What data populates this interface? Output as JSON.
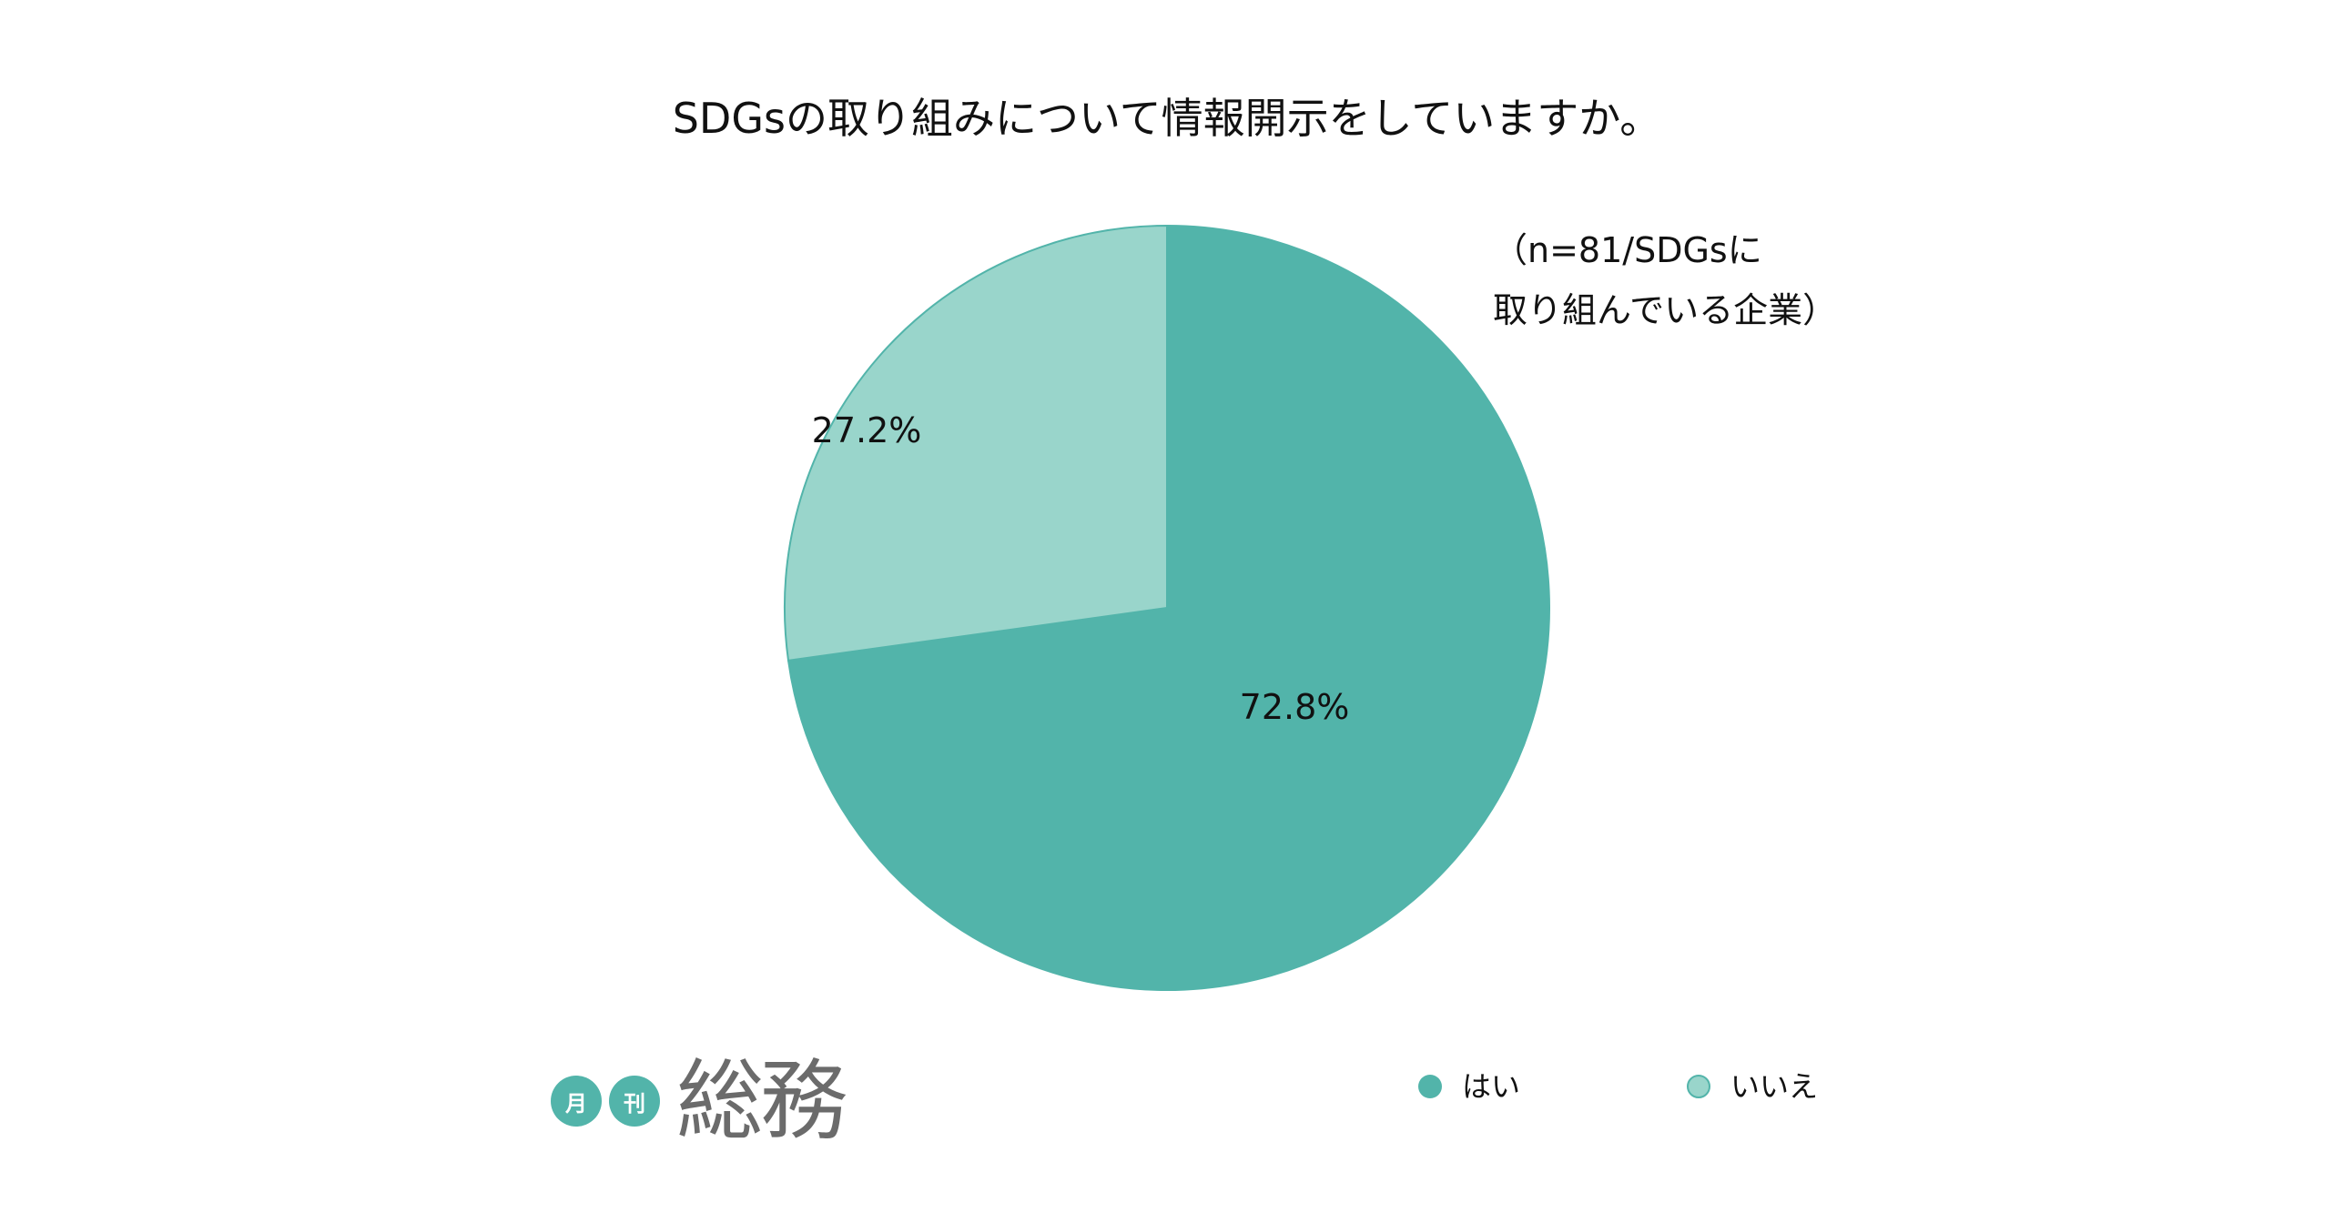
{
  "title": "SDGsの取り組みについて情報開示をしていますか。",
  "note": {
    "line1": "（n=81/SDGsに",
    "line2": "取り組んでいる企業）"
  },
  "colors": {
    "yes": "#52b4aa",
    "no": "#99d5cb",
    "logo_badge": "#52b4aa"
  },
  "chart_data": {
    "type": "pie",
    "title": "SDGsの取り組みについて情報開示をしていますか。",
    "slices": [
      {
        "label": "はい",
        "value": 72.8,
        "display": "72.8%"
      },
      {
        "label": "いいえ",
        "value": 27.2,
        "display": "27.2%"
      }
    ],
    "legend": "bottom-right"
  },
  "legend": {
    "yes": "はい",
    "no": "いいえ"
  },
  "logo": {
    "badge1": "月",
    "badge2": "刊",
    "name": "総務"
  }
}
